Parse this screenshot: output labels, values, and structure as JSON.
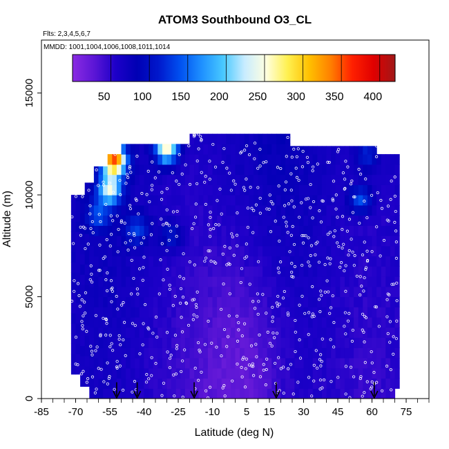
{
  "chart_data": {
    "type": "heatmap",
    "title": "ATOM3 Southbound O3_CL",
    "flights_note": "Flts: 2,3,4,5,6,7",
    "dates_note": "MMDD: 1001,1004,1006,1008,1011,1014",
    "xlabel": "Latitude (deg N)",
    "ylabel": "Altitude (m)",
    "xlim": [
      -85,
      85
    ],
    "ylim": [
      0,
      17600
    ],
    "x_ticks": [
      -85,
      -70,
      -55,
      -40,
      -25,
      -10,
      5,
      15,
      30,
      45,
      60,
      75
    ],
    "y_ticks": [
      0,
      5000,
      10000,
      15000
    ],
    "colorbar": {
      "min": 0,
      "max": 420,
      "ticks": [
        50,
        100,
        150,
        200,
        250,
        300,
        350,
        400
      ],
      "colors": [
        "#8a2be2",
        "#5c16d6",
        "#1d00c8",
        "#0000b4",
        "#0018cc",
        "#0050f0",
        "#1e90ff",
        "#48c8ff",
        "#c8ecff",
        "#ffffe0",
        "#fff050",
        "#ffc000",
        "#ff8000",
        "#ff2000",
        "#e00000",
        "#a01818"
      ]
    },
    "coverage": {
      "lat_min": -72,
      "lat_max": 71,
      "alt_max": 13000
    },
    "arrow_latitudes": [
      -52,
      -43,
      -18,
      18,
      61
    ],
    "hotspots": [
      {
        "lat": -53,
        "alt": 11700,
        "value": 340
      },
      {
        "lat": -30,
        "alt": 12300,
        "value": 260
      },
      {
        "lat": -55,
        "alt": 10300,
        "value": 230
      },
      {
        "lat": -60,
        "alt": 9000,
        "value": 130
      },
      {
        "lat": -43,
        "alt": 8300,
        "value": 130
      },
      {
        "lat": -28,
        "alt": 8000,
        "value": 110
      },
      {
        "lat": 55,
        "alt": 9800,
        "value": 140
      },
      {
        "lat": 58,
        "alt": 12000,
        "value": 120
      }
    ],
    "low_region": {
      "lat": 5,
      "alt": 1500,
      "value": 20
    }
  }
}
